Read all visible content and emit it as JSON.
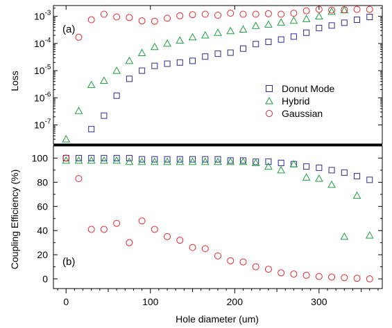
{
  "chart_data": [
    {
      "type": "scatter",
      "panel_label": "(a)",
      "ylabel": "Loss",
      "yscale": "log",
      "ylim": [
        2e-08,
        0.0025
      ],
      "xlim": [
        -15,
        375
      ],
      "yticks": [
        {
          "value": 1e-07,
          "mantissa": "10",
          "exp": "-7"
        },
        {
          "value": 1e-06,
          "mantissa": "10",
          "exp": "-6"
        },
        {
          "value": 1e-05,
          "mantissa": "10",
          "exp": "-5"
        },
        {
          "value": 0.0001,
          "mantissa": "10",
          "exp": "-4"
        },
        {
          "value": 0.001,
          "mantissa": "10",
          "exp": "-3"
        }
      ],
      "legend": {
        "position": "center-right"
      },
      "series": [
        {
          "name": "Donut Mode",
          "marker": "square",
          "color": "#2b2b8f",
          "x": [
            30,
            45,
            60,
            75,
            90,
            105,
            120,
            135,
            150,
            165,
            180,
            195,
            210,
            225,
            240,
            255,
            270,
            285,
            300,
            315,
            330,
            345,
            360
          ],
          "y": [
            7e-08,
            2.2e-07,
            1.2e-06,
            5e-06,
            1e-05,
            1.5e-05,
            1.8e-05,
            2e-05,
            2.3e-05,
            3.3e-05,
            4.2e-05,
            4.6e-05,
            6.5e-05,
            9.5e-05,
            0.000115,
            0.00014,
            0.00018,
            0.00025,
            0.00037,
            0.00046,
            0.00058,
            0.00075,
            0.00095
          ]
        },
        {
          "name": "Hybrid",
          "marker": "triangle",
          "color": "#1e9e3e",
          "x": [
            0,
            15,
            30,
            45,
            60,
            75,
            90,
            105,
            120,
            135,
            150,
            165,
            180,
            195,
            210,
            225,
            240,
            255,
            270,
            285,
            300,
            315,
            330
          ],
          "y": [
            3e-08,
            3.3e-07,
            3e-06,
            4.3e-06,
            1e-05,
            2.3e-05,
            4.5e-05,
            7.5e-05,
            0.0001,
            0.00013,
            0.00017,
            0.0002,
            0.00025,
            0.00029,
            0.00033,
            0.00045,
            0.0005,
            0.0006,
            0.0007,
            0.0008,
            0.001,
            0.0015,
            0.0017
          ]
        },
        {
          "name": "Gaussian",
          "marker": "circle",
          "color": "#e4262c",
          "x": [
            15,
            30,
            45,
            60,
            75,
            90,
            105,
            120,
            135,
            150,
            165,
            180,
            195,
            210,
            225,
            240,
            255,
            270,
            285,
            300,
            315,
            330,
            345,
            360
          ],
          "y": [
            0.00017,
            0.00075,
            0.0012,
            0.00095,
            0.0009,
            0.00068,
            0.00066,
            0.00085,
            0.00105,
            0.00115,
            0.0012,
            0.0011,
            0.0013,
            0.0012,
            0.0012,
            0.00125,
            0.0012,
            0.0013,
            0.0016,
            0.0018,
            0.0017,
            0.00175,
            0.0018,
            0.0018
          ]
        }
      ]
    },
    {
      "type": "scatter",
      "panel_label": "(b)",
      "ylabel": "Coupling Efficiency (%)",
      "xlabel": "Hole diameter (um)",
      "ylim": [
        -8,
        110
      ],
      "xlim": [
        -15,
        375
      ],
      "yticks": [
        "0",
        "20",
        "40",
        "60",
        "80",
        "100"
      ],
      "xticks": [
        "0",
        "100",
        "200",
        "300"
      ],
      "series": [
        {
          "name": "Donut Mode",
          "marker": "square",
          "color": "#2b2b8f",
          "x": [
            0,
            15,
            30,
            45,
            60,
            75,
            90,
            105,
            120,
            135,
            150,
            165,
            180,
            195,
            210,
            225,
            240,
            255,
            270,
            285,
            300,
            315,
            330,
            345,
            360
          ],
          "y": [
            100,
            100,
            100,
            100,
            100,
            100,
            99,
            99,
            99,
            99,
            99,
            99,
            99,
            98,
            98,
            97,
            97,
            96,
            95,
            93,
            92,
            90,
            88,
            85,
            82
          ]
        },
        {
          "name": "Hybrid",
          "marker": "triangle",
          "color": "#1e9e3e",
          "x": [
            0,
            15,
            30,
            45,
            60,
            75,
            90,
            105,
            120,
            135,
            150,
            165,
            180,
            195,
            210,
            225,
            240,
            255,
            270,
            285,
            300,
            315,
            330,
            345,
            360
          ],
          "y": [
            98,
            98,
            98,
            98,
            98,
            97,
            97,
            97,
            97,
            97,
            97,
            97,
            97,
            97,
            97,
            96,
            93,
            90,
            95,
            84,
            83,
            78,
            35,
            69,
            36
          ]
        },
        {
          "name": "Gaussian",
          "marker": "circle",
          "color": "#e4262c",
          "x": [
            0,
            15,
            30,
            45,
            60,
            75,
            90,
            105,
            120,
            135,
            150,
            165,
            180,
            195,
            210,
            225,
            240,
            255,
            270,
            285,
            300,
            315,
            330,
            345,
            360
          ],
          "y": [
            100,
            83,
            41,
            41,
            46,
            30,
            48,
            41,
            35,
            32,
            26,
            25,
            19,
            15,
            14,
            10,
            8,
            5,
            4,
            3,
            2,
            1.5,
            1,
            0.5,
            0
          ]
        }
      ]
    }
  ]
}
